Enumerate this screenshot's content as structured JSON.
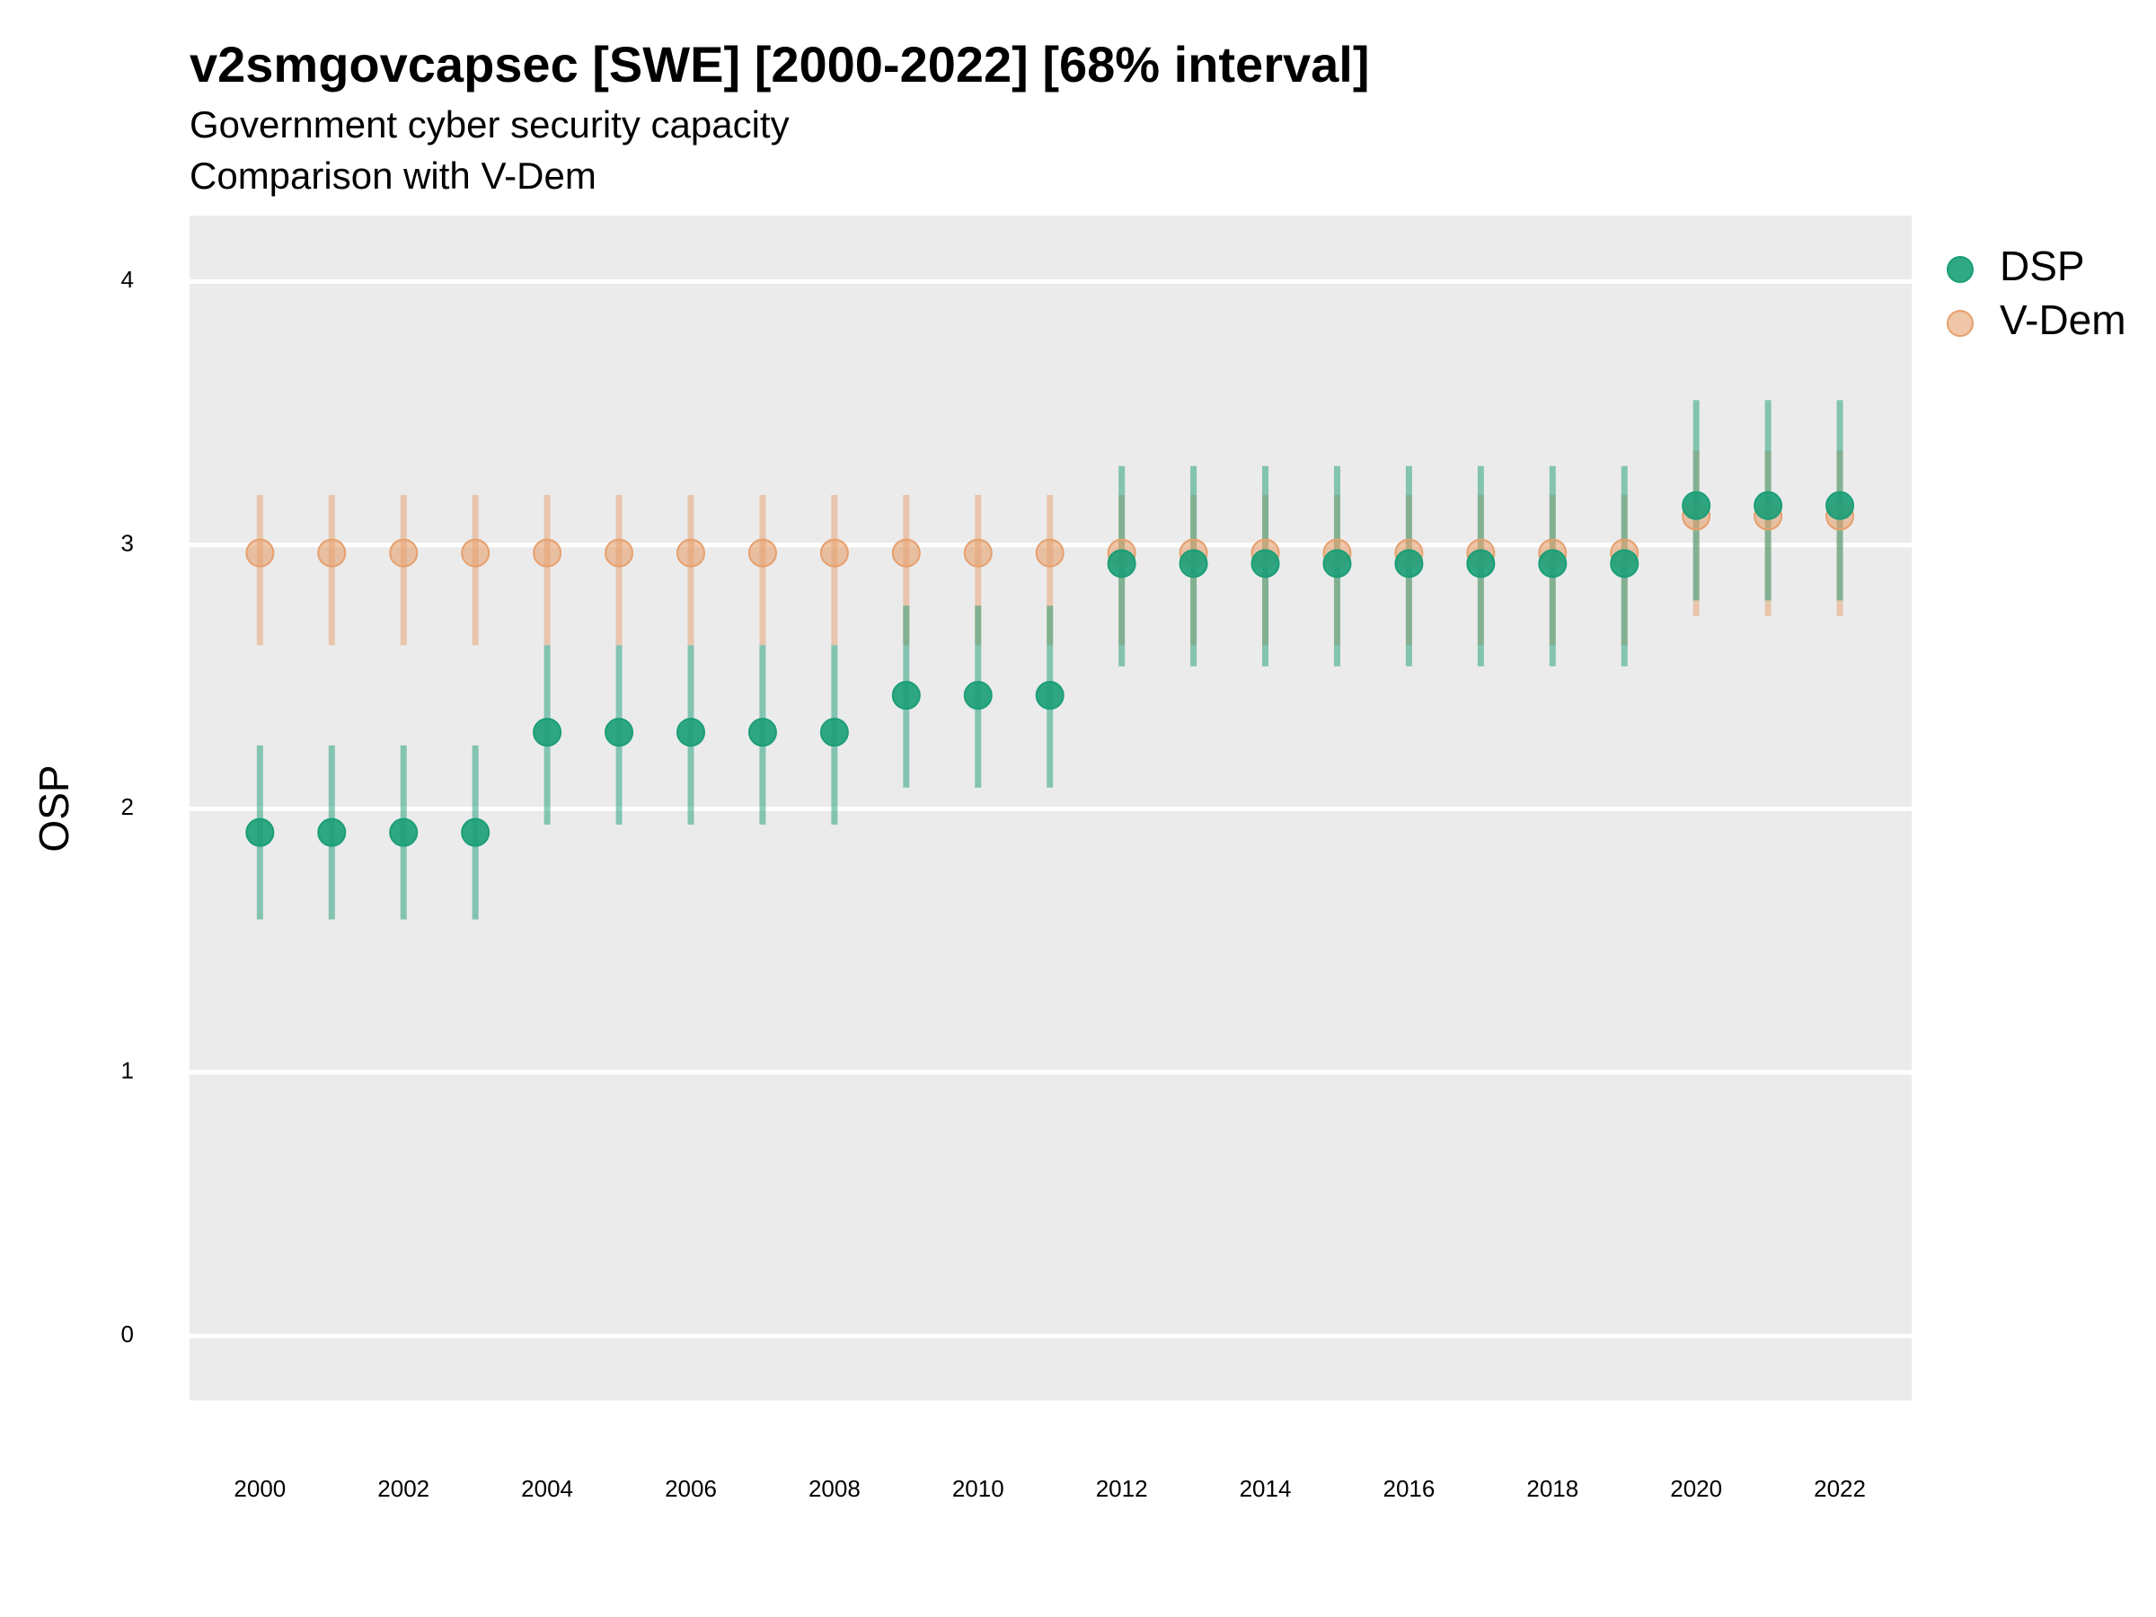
{
  "chart_data": {
    "type": "pointrange",
    "title": "v2smgovcapsec [SWE] [2000-2022] [68% interval]",
    "subtitle": "Government cyber security capacity",
    "subtitle2": "Comparison with V-Dem",
    "y_label": "OSP",
    "x": [
      2000,
      2001,
      2002,
      2003,
      2004,
      2005,
      2006,
      2007,
      2008,
      2009,
      2010,
      2011,
      2012,
      2013,
      2014,
      2015,
      2016,
      2017,
      2018,
      2019,
      2020,
      2021,
      2022
    ],
    "series": [
      {
        "name": "V-Dem",
        "color": "#e6a06e",
        "values": [
          2.97,
          2.97,
          2.97,
          2.97,
          2.97,
          2.97,
          2.97,
          2.97,
          2.97,
          2.97,
          2.97,
          2.97,
          2.97,
          2.97,
          2.97,
          2.97,
          2.97,
          2.97,
          2.97,
          2.97,
          3.11,
          3.11,
          3.11
        ],
        "lower": [
          2.62,
          2.62,
          2.62,
          2.62,
          2.62,
          2.62,
          2.62,
          2.62,
          2.62,
          2.62,
          2.62,
          2.62,
          2.62,
          2.62,
          2.62,
          2.62,
          2.62,
          2.62,
          2.62,
          2.62,
          2.73,
          2.73,
          2.73
        ],
        "upper": [
          3.19,
          3.19,
          3.19,
          3.19,
          3.19,
          3.19,
          3.19,
          3.19,
          3.19,
          3.19,
          3.19,
          3.19,
          3.19,
          3.19,
          3.19,
          3.19,
          3.19,
          3.19,
          3.19,
          3.19,
          3.36,
          3.36,
          3.36
        ]
      },
      {
        "name": "DSP",
        "color": "#1b9e77",
        "values": [
          1.91,
          1.91,
          1.91,
          1.91,
          2.29,
          2.29,
          2.29,
          2.29,
          2.29,
          2.43,
          2.43,
          2.43,
          2.93,
          2.93,
          2.93,
          2.93,
          2.93,
          2.93,
          2.93,
          2.93,
          3.15,
          3.15,
          3.15
        ],
        "lower": [
          1.58,
          1.58,
          1.58,
          1.58,
          1.94,
          1.94,
          1.94,
          1.94,
          1.94,
          2.08,
          2.08,
          2.08,
          2.54,
          2.54,
          2.54,
          2.54,
          2.54,
          2.54,
          2.54,
          2.54,
          2.79,
          2.79,
          2.79
        ],
        "upper": [
          2.24,
          2.24,
          2.24,
          2.24,
          2.62,
          2.62,
          2.62,
          2.62,
          2.62,
          2.77,
          2.77,
          2.77,
          3.3,
          3.3,
          3.3,
          3.3,
          3.3,
          3.3,
          3.3,
          3.3,
          3.55,
          3.55,
          3.55
        ]
      }
    ],
    "legend_order": [
      1,
      0
    ],
    "xlim": [
      1999.02,
      2023.0
    ],
    "xticks": [
      2000,
      2002,
      2004,
      2006,
      2008,
      2010,
      2012,
      2014,
      2016,
      2018,
      2020,
      2022
    ],
    "ylim": [
      -0.245,
      4.25
    ],
    "yticks": [
      0,
      1,
      2,
      3,
      4
    ],
    "grid": true
  }
}
